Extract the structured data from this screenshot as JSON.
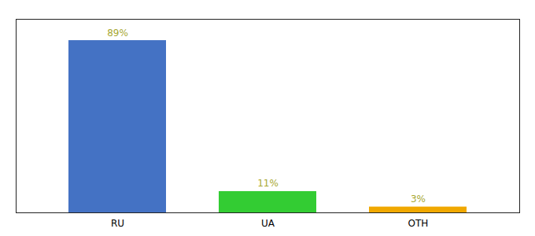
{
  "chart_data": {
    "type": "bar",
    "categories": [
      "RU",
      "UA",
      "OTH"
    ],
    "values": [
      89,
      11,
      3
    ],
    "value_labels": [
      "89%",
      "11%",
      "3%"
    ],
    "colors": [
      "#4472c4",
      "#33cc33",
      "#f0a800"
    ],
    "ylim": [
      0,
      100
    ],
    "yticks": [],
    "grid": false,
    "data_labels": true,
    "tick_labels": "x"
  }
}
